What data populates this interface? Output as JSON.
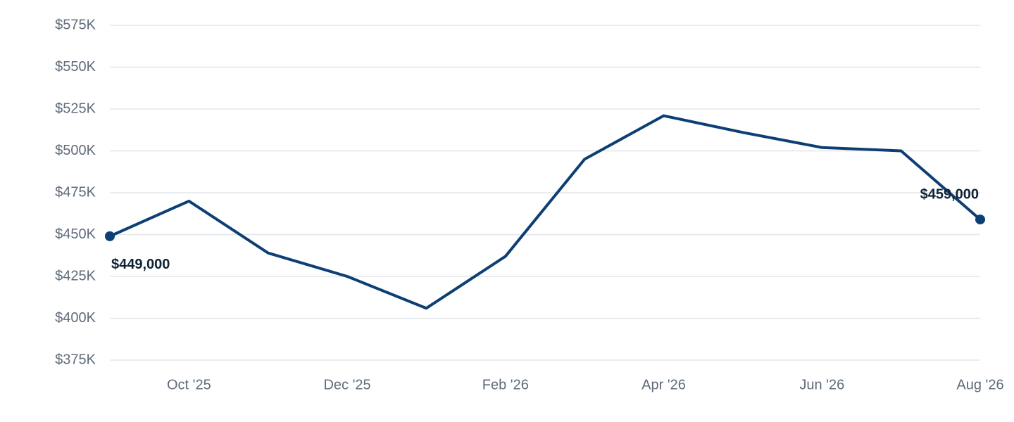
{
  "chart_data": {
    "type": "line",
    "categories": [
      null,
      "Oct '25",
      null,
      "Dec '25",
      null,
      "Feb '26",
      null,
      "Apr '26",
      null,
      "Jun '26",
      null,
      "Aug '26"
    ],
    "series": [
      {
        "color": "#0d3f74",
        "values": [
          449000,
          470000,
          439000,
          425000,
          406000,
          437000,
          495000,
          521000,
          511000,
          502000,
          500000,
          459000
        ],
        "value_labels": [
          "$449,000",
          null,
          null,
          null,
          null,
          null,
          null,
          null,
          null,
          null,
          null,
          "$459,000"
        ]
      }
    ],
    "ylim": [
      375000,
      575000
    ],
    "yticks": [
      {
        "value": 375000,
        "label": "$375K"
      },
      {
        "value": 400000,
        "label": "$400K"
      },
      {
        "value": 425000,
        "label": "$425K"
      },
      {
        "value": 450000,
        "label": "$450K"
      },
      {
        "value": 475000,
        "label": "$475K"
      },
      {
        "value": 500000,
        "label": "$500K"
      },
      {
        "value": 525000,
        "label": "$525K"
      },
      {
        "value": 550000,
        "label": "$550K"
      },
      {
        "value": 575000,
        "label": "$575K"
      }
    ],
    "grid": true
  }
}
